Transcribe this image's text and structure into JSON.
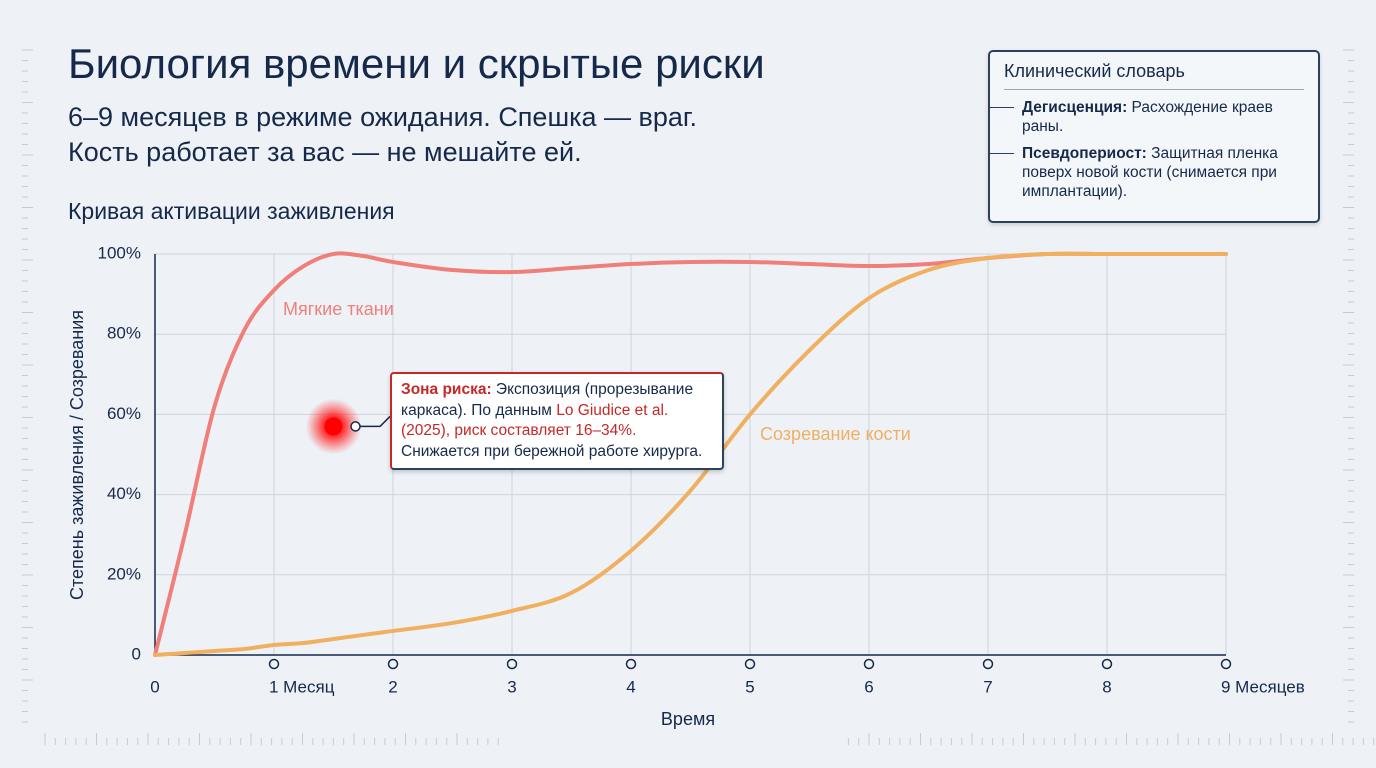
{
  "header": {
    "title": "Биология времени и скрытые риски",
    "subtitle_lines": [
      "6–9 месяцев в режиме ожидания. Спешка — враг.",
      "Кость работает за вас — не мешайте ей."
    ]
  },
  "glossary": {
    "title": "Клинический словарь",
    "items": [
      {
        "term": "Дегисценция:",
        "definition": "Расхождение краев раны."
      },
      {
        "term": "Псевдопериост:",
        "definition": "Защитная пленка поверх новой кости (снимается при имплантации)."
      }
    ]
  },
  "chart_data": {
    "type": "line",
    "title": "Кривая активации заживления",
    "x_label": "Время",
    "y_label": "Степень заживления / Созревания",
    "x": [
      0,
      0.25,
      0.5,
      0.75,
      1,
      1.25,
      1.5,
      1.75,
      2,
      2.5,
      3,
      3.5,
      4,
      4.5,
      5,
      5.5,
      6,
      6.5,
      7,
      7.5,
      8,
      8.5,
      9
    ],
    "series": [
      {
        "name": "Мягкие ткани",
        "color": "#f07f7a",
        "values": [
          0,
          30,
          62,
          81,
          91,
          97,
          100,
          99.5,
          98,
          96,
          95.5,
          96.5,
          97.5,
          98,
          98,
          97.5,
          97,
          97.5,
          99,
          100,
          100,
          100,
          100
        ]
      },
      {
        "name": "Созревание кости",
        "color": "#f0b060",
        "values": [
          0,
          0.5,
          1,
          1.5,
          2.5,
          3,
          4,
          5,
          6,
          8,
          11,
          15.5,
          26,
          41,
          60,
          76,
          89,
          96,
          99,
          100,
          100,
          100,
          100
        ]
      }
    ],
    "xlim": [
      0,
      9
    ],
    "xticks": [
      0,
      {
        "value": 1,
        "label": "1 Месяц"
      },
      2,
      3,
      4,
      5,
      6,
      7,
      8,
      {
        "value": 9,
        "label": "9 Месяцев"
      }
    ],
    "ylim": [
      0,
      100
    ],
    "yticks": [
      0,
      {
        "value": 20,
        "label": "20%"
      },
      {
        "value": 40,
        "label": "40%"
      },
      {
        "value": 60,
        "label": "60%"
      },
      {
        "value": 80,
        "label": "80%"
      },
      {
        "value": 100,
        "label": "100%"
      }
    ],
    "grid": true,
    "annotation": {
      "x": 1.5,
      "y": 57,
      "parts": [
        {
          "text": "Зона риска:",
          "style": "strong"
        },
        {
          "text": " Экспозиция (прорезывание каркаса). По данным ",
          "style": "plain"
        },
        {
          "text": "Lo Giudice et al. (2025), риск составляет 16–34%.",
          "style": "accent"
        },
        {
          "text": " Снижается при бережной работе хирурга.",
          "style": "plain"
        }
      ]
    }
  }
}
